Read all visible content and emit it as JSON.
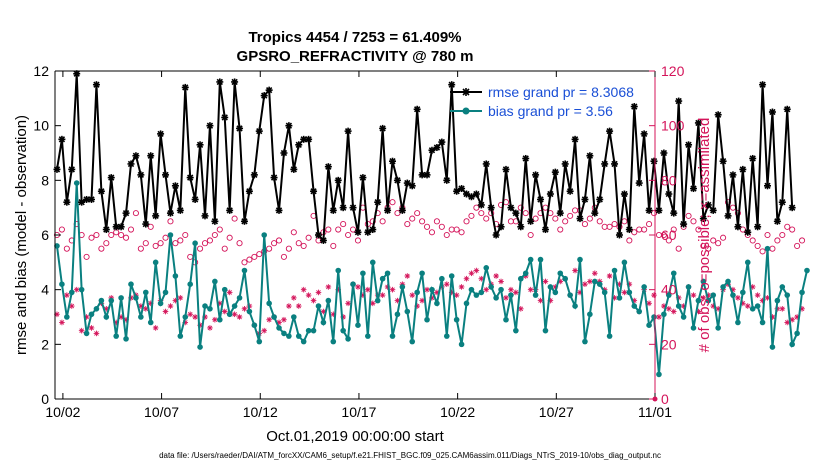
{
  "chart_data": {
    "type": "line",
    "title": "Tropics 4454 / 7253 = 61.409%",
    "subtitle": "GPSRO_REFRACTIVITY @ 780 m",
    "xlabel": "Oct.01,2019 00:00:00 start",
    "ylabel_left": "rmse and bias (model - observation)",
    "ylabel_right": "# of obs: o=possible; ×=assimilated",
    "ylim_left": [
      0,
      12
    ],
    "ylim_right": [
      0,
      120
    ],
    "xlim": [
      0.6,
      31.0
    ],
    "x_ticks": [
      {
        "value": 1.0,
        "label": "10/02"
      },
      {
        "value": 6.0,
        "label": "10/07"
      },
      {
        "value": 11.0,
        "label": "10/12"
      },
      {
        "value": 16.0,
        "label": "10/17"
      },
      {
        "value": 21.0,
        "label": "10/22"
      },
      {
        "value": 26.0,
        "label": "10/27"
      },
      {
        "value": 31.0,
        "label": "11/01"
      }
    ],
    "y_ticks_left": [
      "0",
      "2",
      "4",
      "6",
      "8",
      "10",
      "12"
    ],
    "y_ticks_right": [
      "0",
      "20",
      "40",
      "60",
      "80",
      "100",
      "120"
    ],
    "x_start": 0.7,
    "x_step": 0.25,
    "legend": [
      {
        "label": "rmse grand pr = 8.3068",
        "color": "#000000"
      },
      {
        "label": "bias grand pr = 3.56",
        "color": "#0a8080"
      }
    ],
    "colors": {
      "rmse": "#000000",
      "bias": "#0a8080",
      "obs": "#d4145a"
    },
    "series": [
      {
        "name": "rmse",
        "axis": "left",
        "values": [
          8.4,
          9.5,
          7.2,
          8.4,
          11.9,
          7.2,
          7.3,
          7.3,
          11.5,
          7.6,
          6.2,
          8.1,
          6.3,
          6.3,
          6.8,
          8.6,
          8.9,
          8.2,
          6.4,
          8.9,
          6.7,
          9.7,
          8.2,
          6.8,
          7.8,
          6.9,
          11.4,
          8.1,
          7.3,
          9.3,
          6.7,
          10.0,
          6.5,
          11.6,
          10.3,
          6.9,
          11.6,
          9.9,
          6.5,
          7.6,
          8.2,
          9.8,
          11.1,
          11.3,
          8.1,
          6.9,
          9.0,
          10.0,
          8.4,
          9.3,
          9.5,
          9.5,
          7.6,
          6.0,
          5.8,
          8.5,
          6.9,
          8.0,
          7.0,
          9.8,
          7.0,
          6.1,
          8.1,
          6.1,
          6.2,
          7.2,
          9.9,
          6.9,
          8.7,
          8.0,
          6.9,
          7.9,
          7.8,
          10.6,
          8.2,
          8.2,
          9.1,
          9.2,
          9.4,
          8.0,
          11.5,
          7.6,
          7.7,
          7.5,
          7.4,
          7.5,
          7.1,
          8.6,
          7.0,
          6.0,
          6.3,
          8.4,
          7.0,
          6.8,
          6.3,
          8.8,
          6.5,
          8.2,
          7.3,
          6.2,
          7.5,
          8.3,
          6.8,
          8.6,
          7.6,
          9.5,
          6.6,
          7.3,
          8.9,
          6.8,
          7.3,
          8.6,
          9.8,
          8.6,
          6.0,
          7.5,
          6.2,
          10.7,
          7.9,
          9.7,
          6.9,
          8.7,
          6.9,
          9.0,
          7.5,
          6.8,
          10.9,
          6.4,
          9.3,
          7.7,
          10.1,
          6.6,
          7.1,
          6.9,
          10.4,
          8.7,
          6.7,
          8.2,
          6.3,
          8.4,
          6.1,
          8.8,
          6.3,
          11.5,
          7.8,
          10.5,
          6.5,
          7.2,
          10.6,
          7.0
        ]
      },
      {
        "name": "bias",
        "axis": "left",
        "values": [
          5.6,
          4.2,
          3.0,
          3.9,
          7.9,
          4.0,
          2.4,
          3.1,
          3.3,
          3.6,
          3.0,
          3.6,
          2.3,
          3.7,
          2.2,
          4.2,
          3.7,
          3.0,
          3.9,
          2.8,
          5.0,
          3.5,
          3.9,
          6.0,
          4.5,
          2.3,
          3.0,
          4.2,
          5.7,
          1.9,
          3.4,
          3.3,
          4.3,
          2.9,
          4.0,
          3.1,
          3.4,
          3.7,
          4.7,
          3.2,
          2.7,
          2.1,
          6.0,
          3.5,
          3.0,
          2.6,
          2.4,
          2.3,
          3.0,
          2.3,
          2.1,
          2.5,
          2.5,
          3.4,
          2.8,
          3.6,
          2.1,
          4.7,
          2.5,
          2.2,
          4.2,
          2.7,
          4.6,
          2.3,
          5.0,
          3.6,
          4.4,
          4.6,
          2.3,
          3.1,
          4.1,
          3.2,
          2.1,
          3.9,
          4.6,
          2.9,
          4.0,
          3.5,
          4.4,
          2.3,
          4.5,
          2.9,
          2.0,
          3.5,
          4.0,
          3.8,
          3.9,
          4.8,
          4.1,
          3.7,
          4.0,
          2.9,
          3.8,
          2.5,
          4.4,
          4.6,
          5.1,
          3.8,
          5.1,
          2.5,
          4.1,
          3.9,
          4.6,
          4.4,
          3.8,
          3.4,
          5.1,
          2.1,
          3.1,
          4.3,
          4.2,
          3.9,
          2.3,
          4.7,
          3.7,
          5.0,
          3.9,
          3.4,
          3.2,
          4.1,
          2.7,
          3.0,
          0.9,
          3.1,
          3.8,
          4.6,
          3.4,
          3.0,
          4.1,
          2.6,
          3.6,
          4.3,
          3.6,
          3.8,
          2.6,
          4.1,
          4.3,
          3.8,
          2.8,
          3.9,
          5.0,
          3.3,
          3.4,
          2.8,
          5.5,
          1.9,
          3.6,
          4.1,
          3.8,
          2.0,
          2.4,
          3.9,
          4.7
        ]
      },
      {
        "name": "obs possible",
        "axis": "right",
        "marker": "o",
        "values": [
          60,
          62,
          55,
          58,
          64,
          60,
          52,
          59,
          60,
          55,
          57,
          60,
          61,
          60,
          59,
          62,
          68,
          55,
          57,
          63,
          56,
          57,
          59,
          65,
          57,
          58,
          60,
          52,
          50,
          55,
          57,
          58,
          60,
          62,
          55,
          59,
          66,
          57,
          50,
          51,
          52,
          53,
          54,
          55,
          57,
          58,
          52,
          55,
          61,
          57,
          56,
          59,
          67,
          58,
          61,
          62,
          56,
          62,
          64,
          60,
          62,
          58,
          70,
          64,
          65,
          68,
          65,
          70,
          72,
          68,
          70,
          64,
          66,
          68,
          65,
          63,
          61,
          65,
          63,
          60,
          62,
          62,
          61,
          65,
          67,
          70,
          68,
          66,
          68,
          64,
          71,
          72,
          65,
          65,
          70,
          68,
          60,
          66,
          68,
          70,
          68,
          66,
          62,
          65,
          67,
          69,
          69,
          64,
          66,
          70,
          65,
          63,
          63,
          64,
          63,
          65,
          58,
          61,
          62,
          62,
          64,
          68,
          60,
          60,
          58,
          62,
          55,
          63,
          67,
          65,
          62,
          56,
          55,
          58,
          57,
          59,
          72,
          70,
          68,
          62,
          60,
          58,
          56,
          54,
          60,
          55,
          58,
          60,
          63,
          62,
          56,
          58
        ]
      },
      {
        "name": "obs assimilated",
        "axis": "right",
        "marker": "x",
        "values": [
          31,
          28,
          38,
          34,
          40,
          25,
          30,
          26,
          24,
          35,
          33,
          37,
          28,
          30,
          29,
          37,
          38,
          34,
          33,
          35,
          26,
          36,
          32,
          34,
          36,
          37,
          28,
          31,
          30,
          27,
          30,
          26,
          29,
          35,
          32,
          39,
          31,
          30,
          33,
          34,
          27,
          24,
          25,
          29,
          30,
          28,
          29,
          34,
          37,
          34,
          40,
          38,
          36,
          39,
          32,
          41,
          31,
          40,
          30,
          35,
          42,
          41,
          38,
          40,
          35,
          38,
          38,
          41,
          40,
          36,
          42,
          45,
          38,
          34,
          36,
          40,
          37,
          39,
          41,
          42,
          39,
          38,
          41,
          44,
          46,
          47,
          44,
          40,
          42,
          45,
          43,
          37,
          40,
          39,
          33,
          45,
          40,
          40,
          36,
          43,
          36,
          41,
          43,
          44,
          38,
          47,
          39,
          42,
          43,
          46,
          43,
          40,
          45,
          37,
          42,
          39,
          42,
          36,
          32,
          40,
          35,
          38,
          30,
          34,
          33,
          32,
          37,
          34,
          41,
          38,
          32,
          37,
          38,
          34,
          33,
          40,
          42,
          40,
          37,
          35,
          34,
          41,
          38,
          36,
          37,
          30,
          33,
          33,
          28,
          29,
          30,
          33
        ]
      }
    ]
  },
  "footer": "data file: /Users/raeder/DAI/ATM_forcXX/CAM6_setup/f.e21.FHIST_BGC.f09_025.CAM6assim.011/Diags_NTrS_2019-10/obs_diag_output.nc"
}
